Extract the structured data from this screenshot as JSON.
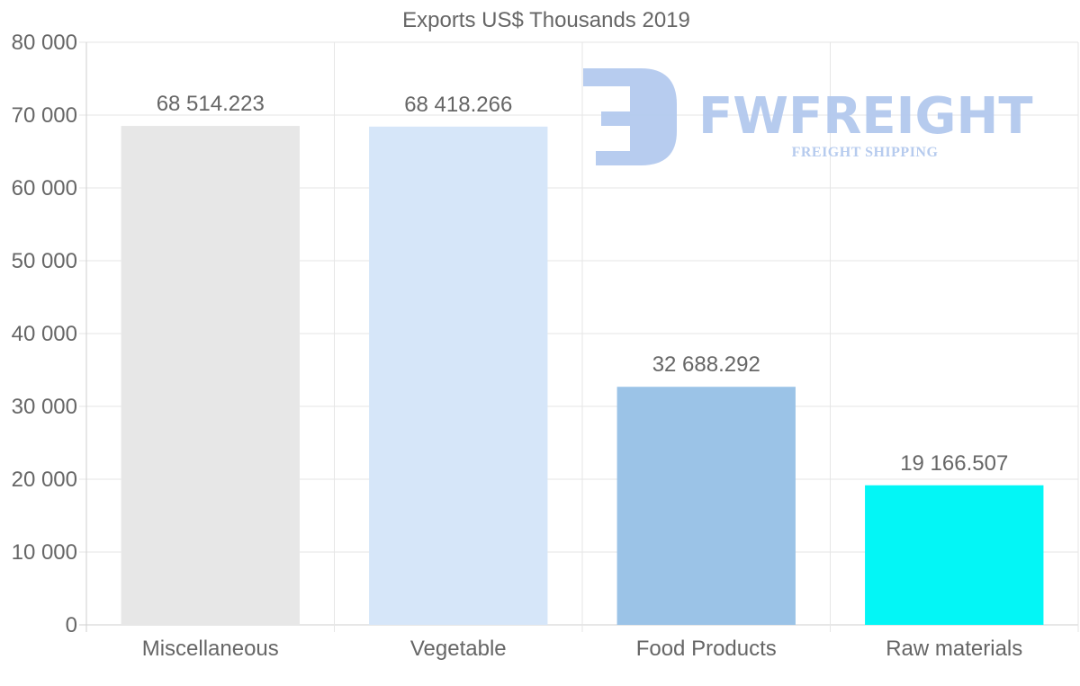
{
  "chart_data": {
    "type": "bar",
    "title": "Exports US$ Thousands 2019",
    "categories": [
      "Miscellaneous",
      "Vegetable",
      "Food Products",
      "Raw materials"
    ],
    "values": [
      68514.223,
      68418.266,
      32688.292,
      19166.507
    ],
    "value_labels": [
      "68 514.223",
      "68 418.266",
      "32 688.292",
      "19 166.507"
    ],
    "bar_colors": [
      "#e7e7e7",
      "#d6e6f9",
      "#9bc3e7",
      "#03f6f6"
    ],
    "ylim": [
      0,
      80000
    ],
    "yticks": [
      0,
      10000,
      20000,
      30000,
      40000,
      50000,
      60000,
      70000,
      80000
    ],
    "ytick_labels": [
      "0",
      "10 000",
      "20 000",
      "30 000",
      "40 000",
      "50 000",
      "60 000",
      "70 000",
      "80 000"
    ],
    "xlabel": "",
    "ylabel": "",
    "grid": true
  },
  "watermark": {
    "brand": "FWFREIGHT",
    "tagline": "FREIGHT SHIPPING",
    "color": "#b3c9ee"
  }
}
